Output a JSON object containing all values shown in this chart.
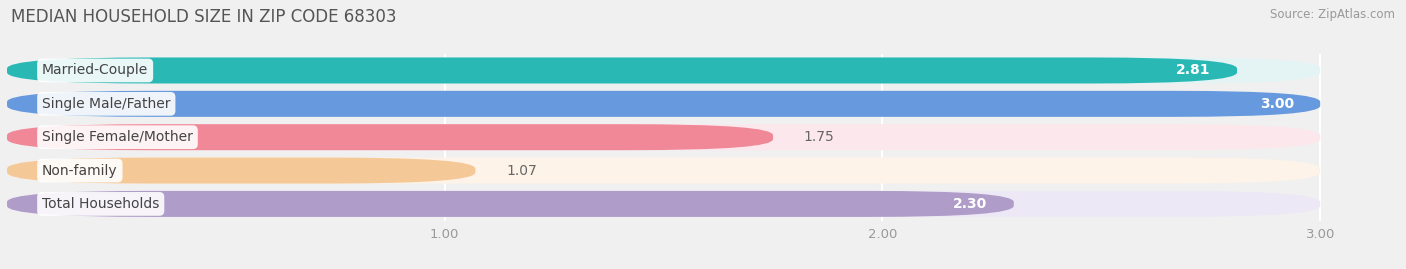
{
  "title": "MEDIAN HOUSEHOLD SIZE IN ZIP CODE 68303",
  "source": "Source: ZipAtlas.com",
  "categories": [
    "Married-Couple",
    "Single Male/Father",
    "Single Female/Mother",
    "Non-family",
    "Total Households"
  ],
  "values": [
    2.81,
    3.0,
    1.75,
    1.07,
    2.3
  ],
  "bar_colors": [
    "#2ab8b5",
    "#6699dd",
    "#f08898",
    "#f5c897",
    "#b09cc8"
  ],
  "bar_bg_colors": [
    "#e4f4f4",
    "#e6eef8",
    "#fce8ec",
    "#fdf3e8",
    "#ede8f5"
  ],
  "value_inside": [
    true,
    true,
    false,
    false,
    true
  ],
  "xlim_left": 0.0,
  "xlim_right": 3.18,
  "xmin": 0.0,
  "xmax": 3.0,
  "xticks": [
    1.0,
    2.0,
    3.0
  ],
  "background_color": "#f0f0f0",
  "title_fontsize": 12,
  "label_fontsize": 10,
  "value_fontsize": 10,
  "source_fontsize": 8.5
}
